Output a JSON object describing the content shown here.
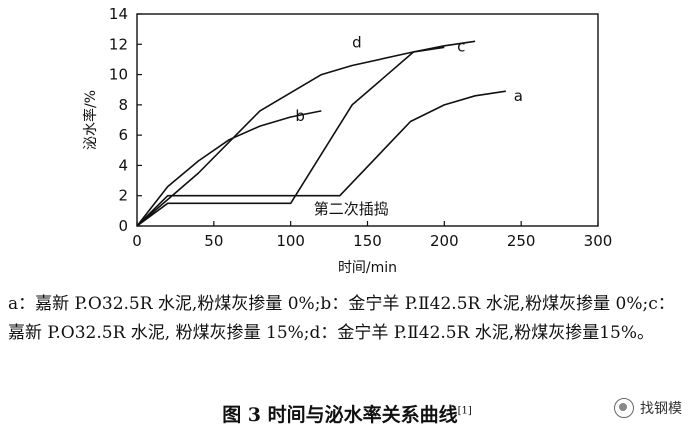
{
  "chart_data": {
    "type": "line",
    "xlabel": "时间/min",
    "ylabel": "泌水率/%",
    "xlim": [
      0,
      300
    ],
    "ylim": [
      0,
      14
    ],
    "xticks": [
      0,
      50,
      100,
      150,
      200,
      250,
      300
    ],
    "yticks": [
      0,
      2,
      4,
      6,
      8,
      10,
      12,
      14
    ],
    "grid": false,
    "series": [
      {
        "name": "a",
        "points": [
          [
            0,
            0
          ],
          [
            20,
            2
          ],
          [
            132,
            2
          ],
          [
            178,
            6.9
          ],
          [
            200,
            8
          ],
          [
            220,
            8.6
          ],
          [
            240,
            8.9
          ]
        ]
      },
      {
        "name": "b",
        "points": [
          [
            0,
            0
          ],
          [
            20,
            2.6
          ],
          [
            40,
            4.3
          ],
          [
            60,
            5.7
          ],
          [
            80,
            6.6
          ],
          [
            100,
            7.2
          ],
          [
            120,
            7.6
          ]
        ]
      },
      {
        "name": "c",
        "points": [
          [
            0,
            0
          ],
          [
            20,
            1.5
          ],
          [
            100,
            1.5
          ],
          [
            140,
            8
          ],
          [
            180,
            11.5
          ],
          [
            200,
            11.9
          ],
          [
            220,
            12.2
          ]
        ]
      },
      {
        "name": "d",
        "points": [
          [
            0,
            0
          ],
          [
            40,
            3.5
          ],
          [
            80,
            7.6
          ],
          [
            120,
            10
          ],
          [
            140,
            10.6
          ],
          [
            180,
            11.5
          ],
          [
            200,
            11.8
          ]
        ]
      }
    ],
    "annotations": {
      "second_revibration": "第二次插捣"
    }
  },
  "caption": {
    "legend_text": "a：嘉新 P.O32.5R 水泥,粉煤灰掺量 0%;b：金宁羊 P.Ⅱ42.5R 水泥,粉煤灰掺量 0%;c：嘉新 P.O32.5R 水泥, 粉煤灰掺量 15%;d：金宁羊 P.Ⅱ42.5R 水泥,粉煤灰掺量15%。",
    "figure_title": "图 3  时间与泌水率关系曲线",
    "figure_ref": "[1]"
  },
  "watermark": {
    "text": "找钢模"
  }
}
